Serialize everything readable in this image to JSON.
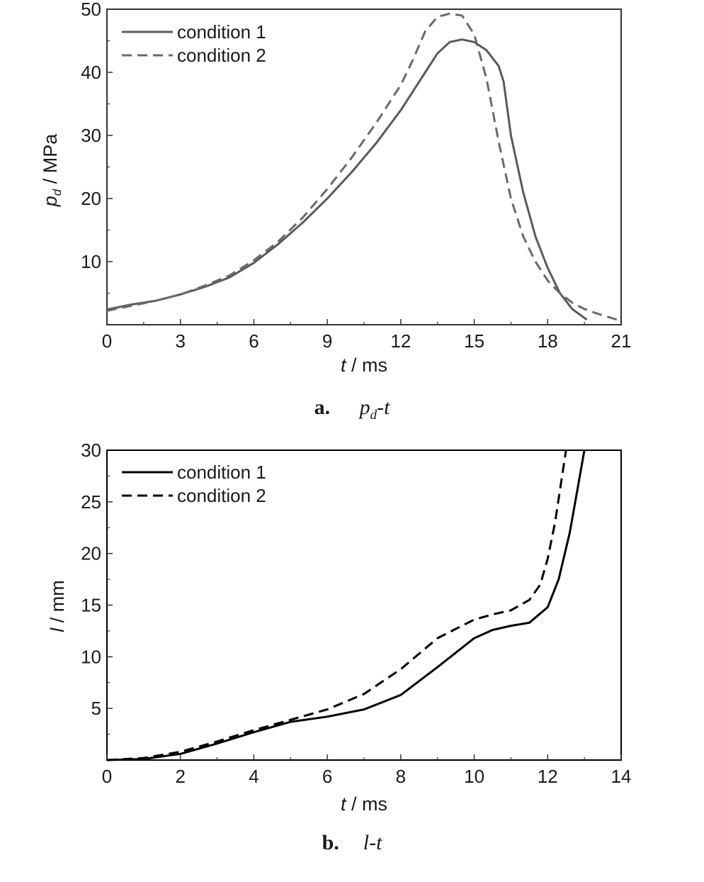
{
  "chart_data": [
    {
      "type": "line",
      "caption": {
        "letter": "a.",
        "var": "p",
        "sub": "d",
        "rest": "-t"
      },
      "xlabel": {
        "var": "t",
        "unit": " / ms"
      },
      "ylabel": {
        "var": "p",
        "sub": "d",
        "unit": " / MPa"
      },
      "xlim": [
        0,
        21
      ],
      "ylim": [
        0,
        50
      ],
      "xticks": [
        "0",
        "3",
        "6",
        "9",
        "12",
        "15",
        "18",
        "21"
      ],
      "yticks": [
        "10",
        "20",
        "30",
        "40",
        "50"
      ],
      "legend_position": "top-left",
      "series": [
        {
          "name": "condition 1",
          "style": "solid",
          "color": "#5a5a5a",
          "x": [
            0,
            1,
            2,
            3,
            4,
            5,
            6,
            7,
            8,
            9,
            10,
            11,
            12,
            13,
            13.5,
            14,
            14.5,
            15,
            15.5,
            16,
            16.2,
            16.5,
            17,
            17.5,
            18,
            18.5,
            19,
            19.6
          ],
          "y": [
            2.4,
            3.2,
            3.8,
            4.8,
            6.0,
            7.5,
            9.8,
            12.8,
            16.2,
            20.0,
            24.2,
            28.8,
            34.0,
            40.0,
            43.0,
            44.8,
            45.2,
            44.8,
            43.5,
            41.0,
            38.5,
            30.0,
            21.0,
            14.0,
            9.0,
            5.0,
            2.5,
            0.8
          ]
        },
        {
          "name": "condition 2",
          "style": "dashed",
          "color": "#6a6a6a",
          "x": [
            0,
            1,
            2,
            3,
            4,
            5,
            6,
            7,
            8,
            9,
            10,
            11,
            12,
            12.5,
            13,
            13.5,
            14,
            14.5,
            15,
            15.5,
            16,
            16.5,
            17,
            17.5,
            18,
            18.5,
            19,
            19.5,
            20,
            20.5,
            21
          ],
          "y": [
            2.2,
            3.0,
            3.8,
            4.8,
            6.2,
            7.8,
            10.2,
            13.2,
            17.0,
            21.5,
            26.5,
            32.0,
            38.0,
            42.0,
            46.5,
            48.8,
            49.3,
            49.0,
            46.0,
            39.0,
            29.0,
            20.0,
            14.0,
            10.0,
            7.0,
            5.0,
            3.5,
            2.5,
            1.8,
            1.2,
            0.6
          ]
        }
      ]
    },
    {
      "type": "line",
      "caption": {
        "letter": "b.",
        "var": "l",
        "rest": "-t"
      },
      "xlabel": {
        "var": "t",
        "unit": " / ms"
      },
      "ylabel": {
        "var": "l",
        "unit": " / mm"
      },
      "xlim": [
        0,
        14
      ],
      "ylim": [
        0,
        30
      ],
      "xticks": [
        "0",
        "2",
        "4",
        "6",
        "8",
        "10",
        "12",
        "14"
      ],
      "yticks": [
        "5",
        "10",
        "15",
        "20",
        "25",
        "30"
      ],
      "legend_position": "top-left",
      "series": [
        {
          "name": "condition 1",
          "style": "solid",
          "color": "#000000",
          "x": [
            0,
            1,
            2,
            3,
            4,
            5,
            6,
            7,
            8,
            9,
            10,
            10.5,
            11,
            11.5,
            12,
            12.3,
            12.6,
            12.8,
            13.0
          ],
          "y": [
            0.0,
            0.1,
            0.6,
            1.6,
            2.7,
            3.7,
            4.2,
            4.9,
            6.3,
            9.0,
            11.8,
            12.6,
            13.0,
            13.3,
            14.8,
            17.5,
            22.0,
            26.0,
            30.0
          ]
        },
        {
          "name": "condition 2",
          "style": "dashed",
          "color": "#000000",
          "x": [
            0,
            1,
            2,
            3,
            4,
            5,
            6,
            7,
            8,
            9,
            10,
            10.5,
            11,
            11.5,
            11.8,
            12.0,
            12.2,
            12.35,
            12.5
          ],
          "y": [
            0.0,
            0.2,
            0.8,
            1.8,
            2.9,
            3.9,
            4.9,
            6.4,
            8.8,
            11.8,
            13.6,
            14.1,
            14.5,
            15.5,
            17.0,
            19.5,
            23.0,
            26.5,
            30.0
          ]
        }
      ]
    }
  ]
}
